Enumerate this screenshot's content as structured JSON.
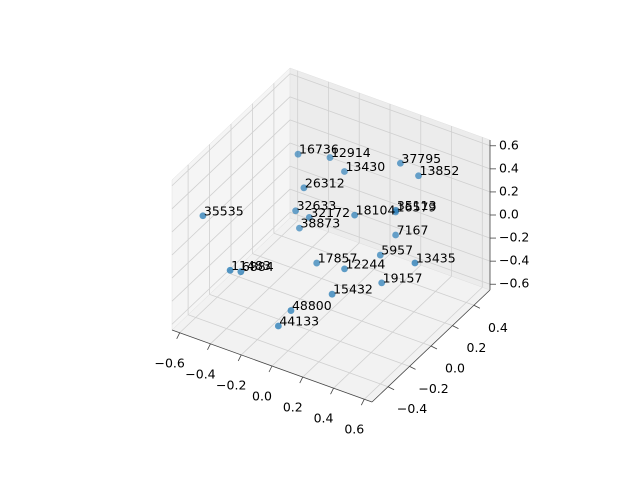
{
  "chart_data": {
    "type": "scatter3d",
    "x": [
      -0.27,
      -0.16,
      -0.08,
      0.2,
      0.29,
      -0.19,
      -0.47,
      -0.23,
      -0.19,
      -0.24,
      0.07,
      0.19,
      0.24,
      0.19,
      0.16,
      0.42,
      -0.1,
      0.06,
      -0.3,
      -0.3,
      0.19,
      0.07,
      -0.1,
      -0.14
    ],
    "y": [
      0.08,
      0.22,
      0.24,
      0.36,
      0.4,
      0.02,
      -0.52,
      0.0,
      0.07,
      0.05,
      0.12,
      0.33,
      0.26,
      0.33,
      0.23,
      0.18,
      0.01,
      0.04,
      -0.51,
      -0.41,
      0.2,
      -0.09,
      -0.23,
      -0.29
    ],
    "z": [
      0.5,
      0.4,
      0.3,
      0.4,
      0.3,
      0.3,
      0.4,
      0.1,
      0.0,
      -0.1,
      0.1,
      0.0,
      0.1,
      -0.2,
      -0.3,
      -0.2,
      -0.3,
      -0.3,
      0.0,
      -0.1,
      -0.5,
      -0.4,
      -0.5,
      -0.6
    ],
    "labels": [
      "16736",
      "12914",
      "13430",
      "37795",
      "13852",
      "26312",
      "35535",
      "32633",
      "32172",
      "38873",
      "18104",
      "16579",
      "35113",
      "7167",
      "5957",
      "13435",
      "17857",
      "12244",
      "11483",
      "6884",
      "19157",
      "15432",
      "48800",
      "44133"
    ],
    "color": "#1f77b4",
    "xlim": [
      -0.65,
      0.65
    ],
    "ylim": [
      -0.55,
      0.55
    ],
    "zlim": [
      -0.65,
      0.65
    ],
    "xticks": [
      {
        "value": -0.6,
        "label": "−0.6"
      },
      {
        "value": -0.4,
        "label": "−0.4"
      },
      {
        "value": -0.2,
        "label": "−0.2"
      },
      {
        "value": 0,
        "label": "0.0"
      },
      0.2,
      0.4,
      0.6
    ],
    "yticks": [
      {
        "value": -0.4,
        "label": "−0.4"
      },
      {
        "value": -0.2,
        "label": "−0.2"
      },
      {
        "value": 0,
        "label": "0.0"
      },
      0.2,
      0.4
    ],
    "zticks": [
      {
        "value": -0.6,
        "label": "−0.6"
      },
      {
        "value": -0.4,
        "label": "−0.4"
      },
      {
        "value": -0.2,
        "label": "−0.2"
      },
      {
        "value": 0,
        "label": "0.0"
      },
      0.2,
      0.4,
      0.6
    ],
    "grid": true
  }
}
